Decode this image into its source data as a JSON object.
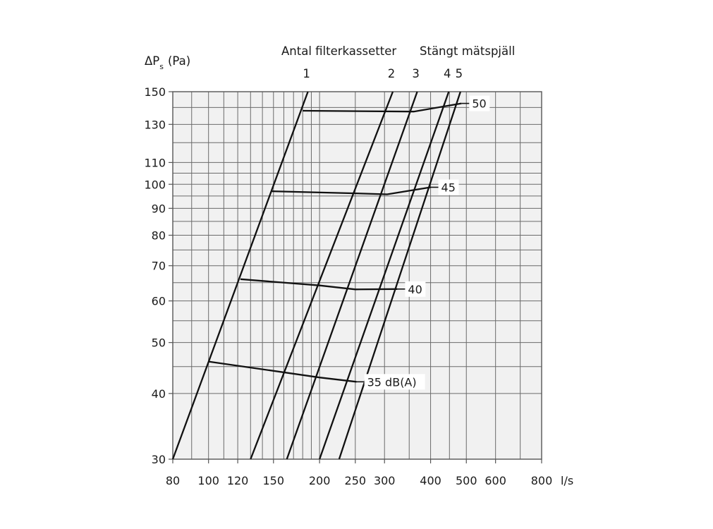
{
  "chart_data": {
    "type": "line",
    "x_scale": "log",
    "y_scale": "log",
    "ylabel": "ΔPs (Pa)",
    "ylabel_main": "ΔP",
    "ylabel_sub": "s",
    "ylabel_unit": "(Pa)",
    "xlabel": "l/s",
    "xlim": [
      80,
      800
    ],
    "ylim": [
      30,
      150
    ],
    "x_ticks": [
      80,
      100,
      120,
      150,
      200,
      250,
      300,
      400,
      500,
      600,
      800
    ],
    "y_ticks": [
      30,
      40,
      50,
      60,
      70,
      80,
      90,
      100,
      110,
      130,
      150
    ],
    "x_grid": [
      80,
      90,
      100,
      110,
      120,
      130,
      140,
      150,
      160,
      170,
      180,
      190,
      200,
      250,
      300,
      350,
      400,
      450,
      500,
      600,
      700,
      800
    ],
    "y_grid": [
      30,
      40,
      45,
      50,
      55,
      60,
      65,
      70,
      75,
      80,
      85,
      90,
      95,
      100,
      105,
      110,
      120,
      130,
      140,
      150
    ],
    "grid": true,
    "header_left": "Antal filterkassetter",
    "header_right": "Stängt mätspjäll",
    "filter_lines": [
      {
        "label": "1",
        "points": [
          [
            80,
            30
          ],
          [
            186,
            150
          ]
        ]
      },
      {
        "label": "2",
        "points": [
          [
            130,
            30
          ],
          [
            316,
            150
          ]
        ]
      },
      {
        "label": "3",
        "points": [
          [
            163,
            30
          ],
          [
            368,
            150
          ]
        ]
      },
      {
        "label": "4",
        "points": [
          [
            200,
            30
          ],
          [
            448,
            150
          ]
        ]
      },
      {
        "label": "5",
        "points": [
          [
            226,
            30
          ],
          [
            482,
            150
          ]
        ]
      }
    ],
    "sound_lines": [
      {
        "label": "35 dB(A)",
        "points": [
          [
            100,
            46
          ],
          [
            200,
            42.9
          ],
          [
            252,
            42.1
          ]
        ]
      },
      {
        "label": "40",
        "points": [
          [
            122,
            66
          ],
          [
            200,
            64.2
          ],
          [
            250,
            63.1
          ],
          [
            325,
            63.2
          ]
        ]
      },
      {
        "label": "45",
        "points": [
          [
            148,
            97
          ],
          [
            250,
            96.1
          ],
          [
            305,
            95.7
          ],
          [
            400,
            98.7
          ]
        ]
      },
      {
        "label": "50",
        "points": [
          [
            180,
            138
          ],
          [
            360,
            137.5
          ],
          [
            485,
            142.5
          ]
        ]
      }
    ]
  }
}
